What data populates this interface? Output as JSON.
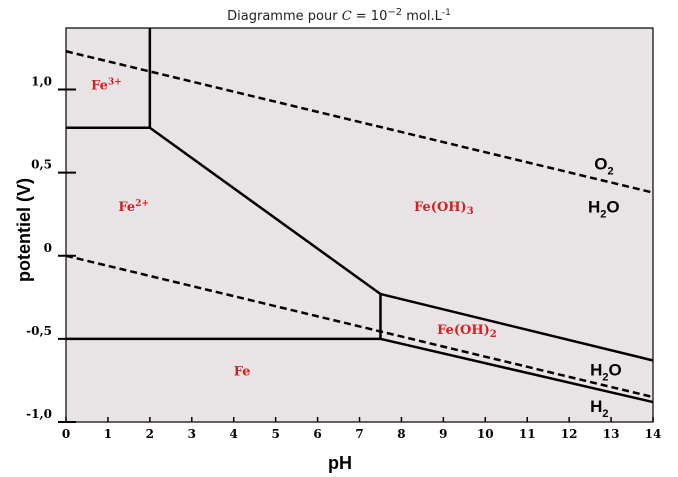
{
  "title": {
    "prefix": "Diagramme pour ",
    "var": "C",
    "eq": " = 10",
    "exp": "−2",
    "unit": " mol.L",
    "unit_exp": "-1"
  },
  "chart_data": {
    "type": "pourbaix",
    "xlabel": "pH",
    "ylabel": "potentiel (V)",
    "xlim": [
      0,
      14
    ],
    "ylim": [
      -1.0,
      1.37
    ],
    "x_ticks": [
      0,
      1,
      2,
      3,
      4,
      5,
      6,
      7,
      8,
      9,
      10,
      11,
      12,
      13,
      14
    ],
    "y_ticks": [
      {
        "value": 1.0,
        "label": "1,0"
      },
      {
        "value": 0.5,
        "label": "0,5"
      },
      {
        "value": 0.0,
        "label": "0"
      },
      {
        "value": -0.5,
        "label": "-0,5"
      },
      {
        "value": -1.0,
        "label": "-1,0"
      }
    ],
    "boundaries": [
      {
        "from": [
          0,
          0.77
        ],
        "to": [
          2,
          0.77
        ]
      },
      {
        "from": [
          2,
          1.37
        ],
        "to": [
          2,
          0.77
        ]
      },
      {
        "from": [
          2,
          0.77
        ],
        "to": [
          7.5,
          -0.23
        ]
      },
      {
        "from": [
          7.5,
          -0.23
        ],
        "to": [
          7.5,
          -0.5
        ]
      },
      {
        "from": [
          0,
          -0.5
        ],
        "to": [
          7.5,
          -0.5
        ]
      },
      {
        "from": [
          7.5,
          -0.23
        ],
        "to": [
          14,
          -0.63
        ]
      },
      {
        "from": [
          7.5,
          -0.5
        ],
        "to": [
          14,
          -0.88
        ]
      }
    ],
    "water_lines": [
      {
        "upper": "O2",
        "lower": "H2O",
        "from": [
          0,
          1.23
        ],
        "to": [
          14,
          0.38
        ]
      },
      {
        "upper": "H2O",
        "lower": "H2",
        "from": [
          0,
          0.0
        ],
        "to": [
          14,
          -0.85
        ]
      }
    ],
    "species": [
      {
        "base": "Fe",
        "sup": "3+",
        "sub": "",
        "x": 0.6,
        "y": 1.0
      },
      {
        "base": "Fe",
        "sup": "2+",
        "sub": "",
        "x": 1.25,
        "y": 0.27
      },
      {
        "base": "Fe(OH)",
        "sup": "",
        "sub": "3",
        "x": 8.3,
        "y": 0.27
      },
      {
        "base": "Fe(OH)",
        "sup": "",
        "sub": "2",
        "x": 8.85,
        "y": -0.47
      },
      {
        "base": "Fe",
        "sup": "",
        "sub": "",
        "x": 4.0,
        "y": -0.72
      }
    ],
    "water_labels": [
      {
        "base": "O",
        "sub": "2",
        "x": 12.6,
        "y": 0.52
      },
      {
        "base": "H",
        "sub": "2",
        "post": "O",
        "x": 12.45,
        "y": 0.26
      },
      {
        "base": "H",
        "sub": "2",
        "post": "O",
        "x": 12.5,
        "y": -0.72
      },
      {
        "base": "H",
        "sub": "2",
        "post": "",
        "x": 12.5,
        "y": -0.94
      }
    ],
    "plot_background": "#e8e4e6",
    "species_color": "#d42020"
  }
}
